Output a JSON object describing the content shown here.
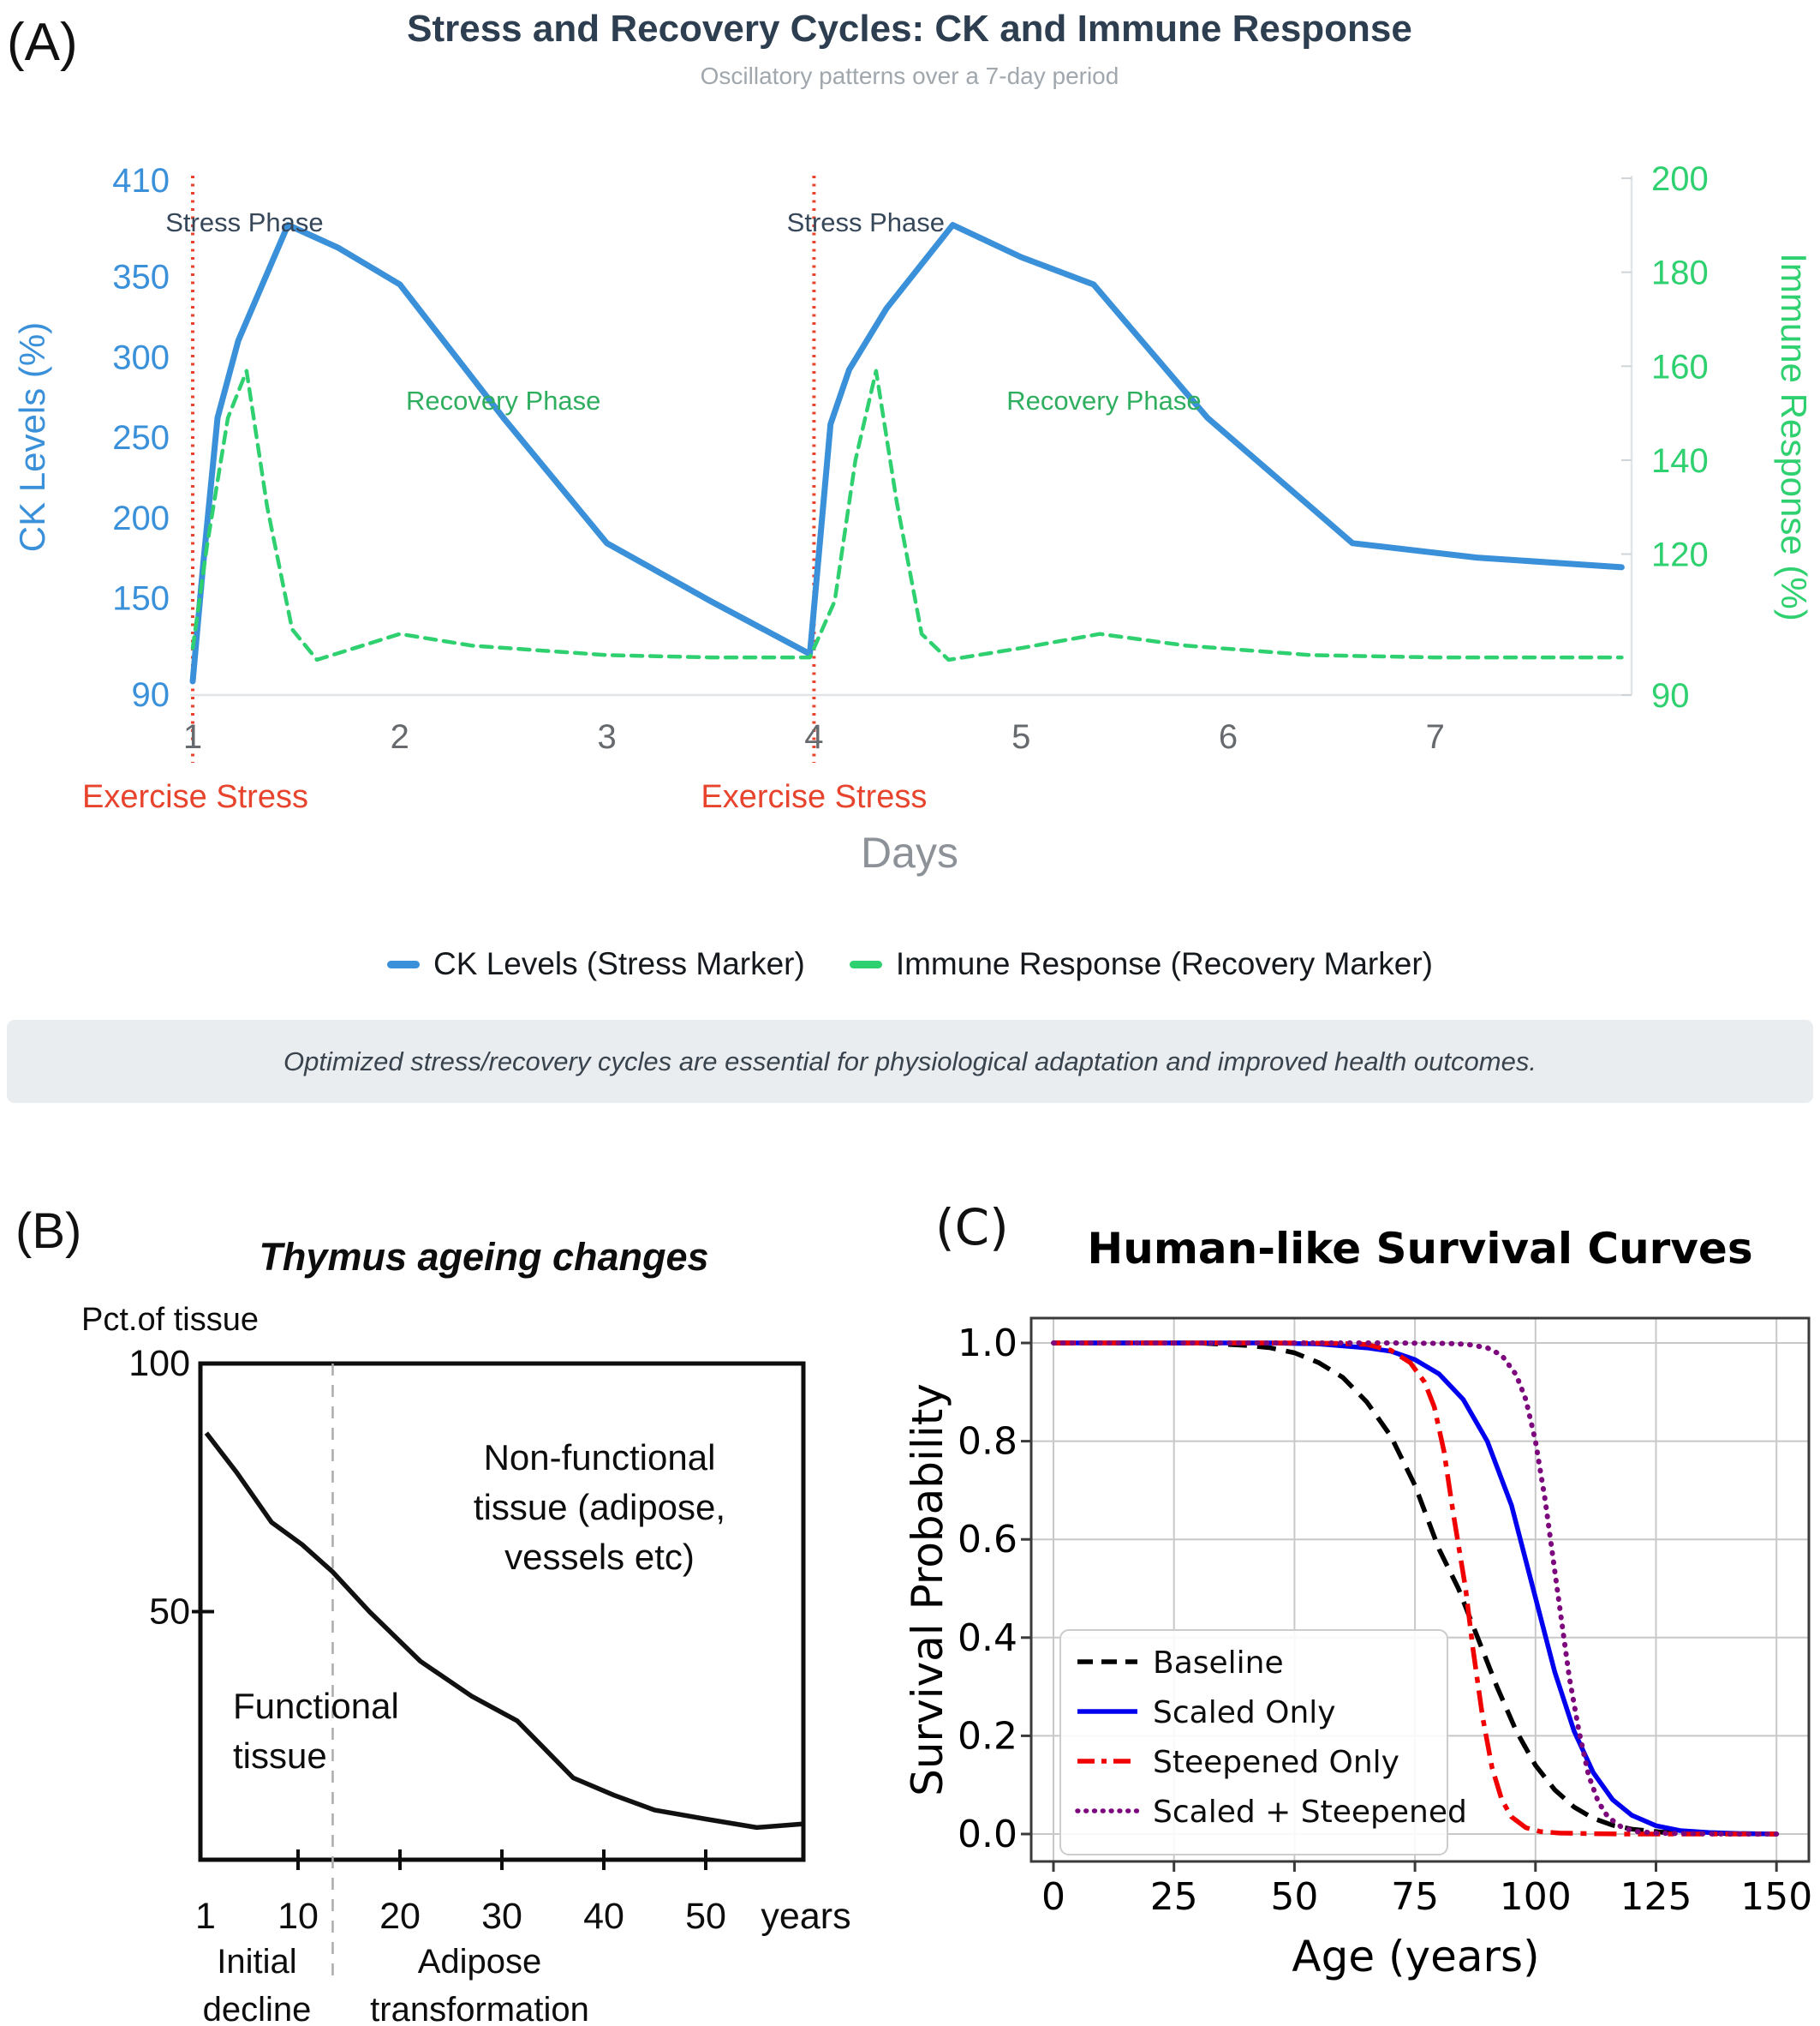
{
  "figure": {
    "panel_a": {
      "label": "(A)",
      "caption": "Optimized stress/recovery cycles are essential for physiological adaptation and improved health outcomes."
    },
    "panel_b": {
      "label": "(B)"
    },
    "panel_c": {
      "label": "(C)"
    }
  },
  "chart_data": [
    {
      "type": "line",
      "title": "Stress and Recovery Cycles: CK and Immune Response",
      "subtitle": "Oscillatory patterns over a 7-day period",
      "xlabel": "Days",
      "x_ticks": [
        1,
        2,
        3,
        4,
        5,
        6,
        7
      ],
      "xlim": [
        1,
        7.9
      ],
      "grid": false,
      "legend_position": "bottom",
      "y_left": {
        "label": "CK Levels (%)",
        "ticks": [
          410,
          350,
          300,
          250,
          200,
          150,
          90
        ],
        "range": [
          90,
          410
        ],
        "color": "#3a90d9"
      },
      "y_right": {
        "label": "Immune Response (%)",
        "ticks": [
          200,
          180,
          160,
          140,
          120,
          90
        ],
        "range": [
          90,
          200
        ],
        "color": "#2fd06f"
      },
      "vlines": [
        {
          "x": 1,
          "label": "Exercise Stress",
          "color": "#e8432d"
        },
        {
          "x": 4,
          "label": "Exercise Stress",
          "color": "#e8432d"
        }
      ],
      "annotations": [
        {
          "text": "Stress Phase",
          "x": 1.25,
          "y": 378,
          "color": "#37475a"
        },
        {
          "text": "Stress Phase",
          "x": 4.25,
          "y": 378,
          "color": "#37475a"
        },
        {
          "text": "Recovery Phase",
          "x": 2.5,
          "y": 267,
          "color": "#2fae5f"
        },
        {
          "text": "Recovery Phase",
          "x": 5.4,
          "y": 267,
          "color": "#2fae5f"
        }
      ],
      "series": [
        {
          "name": "CK Levels (Stress Marker)",
          "axis": "left",
          "color": "#3a90d9",
          "style": "solid",
          "points": [
            [
              1,
              98
            ],
            [
              1.05,
              170
            ],
            [
              1.12,
              262
            ],
            [
              1.22,
              310
            ],
            [
              1.46,
              382
            ],
            [
              1.7,
              368
            ],
            [
              2,
              345
            ],
            [
              2.5,
              262
            ],
            [
              3,
              184
            ],
            [
              3.5,
              148
            ],
            [
              3.98,
              115
            ],
            [
              4.08,
              258
            ],
            [
              4.17,
              292
            ],
            [
              4.35,
              330
            ],
            [
              4.67,
              382
            ],
            [
              5,
              362
            ],
            [
              5.35,
              345
            ],
            [
              5.9,
              262
            ],
            [
              6.6,
              184
            ],
            [
              7.2,
              175
            ],
            [
              7.9,
              169
            ]
          ]
        },
        {
          "name": "Immune Response (Recovery Marker)",
          "axis": "right",
          "color": "#2fd06f",
          "style": "dashed",
          "points": [
            [
              1,
              100
            ],
            [
              1.07,
              122
            ],
            [
              1.17,
              149
            ],
            [
              1.26,
              159
            ],
            [
              1.36,
              130
            ],
            [
              1.48,
              104
            ],
            [
              1.6,
              97.5
            ],
            [
              2,
              103
            ],
            [
              2.35,
              100.5
            ],
            [
              3,
              98.5
            ],
            [
              3.5,
              98
            ],
            [
              3.98,
              98
            ],
            [
              4.1,
              110
            ],
            [
              4.2,
              140
            ],
            [
              4.3,
              159
            ],
            [
              4.4,
              131
            ],
            [
              4.52,
              103
            ],
            [
              4.65,
              97.5
            ],
            [
              5,
              100
            ],
            [
              5.38,
              103
            ],
            [
              5.8,
              100.5
            ],
            [
              6.4,
              98.5
            ],
            [
              7,
              98
            ],
            [
              7.9,
              98
            ]
          ]
        }
      ]
    },
    {
      "type": "line",
      "title": "Thymus ageing changes",
      "ylabel": "Pct.of tissue",
      "y_ticks": [
        100,
        50
      ],
      "x_ticks": [
        10,
        20,
        30,
        40,
        50
      ],
      "x_first_label": "1",
      "x_unit": "years",
      "dashed_vline_x": 13.4,
      "series": [
        {
          "name": "Functional tissue fraction",
          "color": "#111111",
          "points": [
            [
              1,
              86
            ],
            [
              4,
              78
            ],
            [
              7.4,
              68
            ],
            [
              10.4,
              63.5
            ],
            [
              13.4,
              58
            ],
            [
              17,
              50
            ],
            [
              22,
              40
            ],
            [
              27,
              33
            ],
            [
              31.5,
              28
            ],
            [
              37,
              16.5
            ],
            [
              41,
              13
            ],
            [
              45,
              10
            ],
            [
              50,
              8.2
            ],
            [
              55,
              6.5
            ],
            [
              59.5,
              7.2
            ]
          ]
        }
      ],
      "annotations": {
        "non_functional": [
          "Non-functional",
          "tissue (adipose,",
          "vessels etc)"
        ],
        "functional": [
          "Functional",
          "tissue"
        ],
        "initial_decline": [
          "Initial",
          "decline"
        ],
        "adipose_transformation": [
          "Adipose",
          "transformation"
        ]
      }
    },
    {
      "type": "line",
      "title": "Human-like Survival Curves",
      "xlabel": "Age (years)",
      "ylabel": "Survival Probability",
      "xlim": [
        0,
        150
      ],
      "ylim": [
        0.0,
        1.0
      ],
      "x_ticks": [
        0,
        25,
        50,
        75,
        100,
        125,
        150
      ],
      "y_ticks": [
        "0.0",
        "0.2",
        "0.4",
        "0.6",
        "0.8",
        "1.0"
      ],
      "grid": true,
      "legend_position": "lower left",
      "series": [
        {
          "name": "Baseline",
          "color": "#000000",
          "style": "dashed",
          "points": [
            [
              0,
              1
            ],
            [
              30,
              1
            ],
            [
              40,
              0.995
            ],
            [
              45,
              0.99
            ],
            [
              50,
              0.98
            ],
            [
              55,
              0.96
            ],
            [
              60,
              0.93
            ],
            [
              65,
              0.88
            ],
            [
              70,
              0.81
            ],
            [
              75,
              0.71
            ],
            [
              80,
              0.58
            ],
            [
              84,
              0.5
            ],
            [
              88,
              0.4
            ],
            [
              92,
              0.3
            ],
            [
              96,
              0.21
            ],
            [
              100,
              0.14
            ],
            [
              104,
              0.09
            ],
            [
              108,
              0.055
            ],
            [
              112,
              0.032
            ],
            [
              116,
              0.018
            ],
            [
              120,
              0.01
            ],
            [
              126,
              0.004
            ],
            [
              132,
              0.002
            ],
            [
              140,
              0.001
            ],
            [
              150,
              0
            ]
          ]
        },
        {
          "name": "Scaled Only",
          "color": "#0000ee",
          "style": "solid",
          "points": [
            [
              0,
              1
            ],
            [
              45,
              1
            ],
            [
              55,
              0.998
            ],
            [
              65,
              0.99
            ],
            [
              70,
              0.983
            ],
            [
              75,
              0.966
            ],
            [
              80,
              0.937
            ],
            [
              85,
              0.885
            ],
            [
              90,
              0.8
            ],
            [
              95,
              0.67
            ],
            [
              99.5,
              0.5
            ],
            [
              104,
              0.33
            ],
            [
              108,
              0.21
            ],
            [
              112,
              0.125
            ],
            [
              116,
              0.07
            ],
            [
              120,
              0.038
            ],
            [
              125,
              0.017
            ],
            [
              130,
              0.007
            ],
            [
              136,
              0.003
            ],
            [
              142,
              0.001
            ],
            [
              150,
              0
            ]
          ]
        },
        {
          "name": "Steepened Only",
          "color": "#f00000",
          "style": "dashdot",
          "points": [
            [
              0,
              1
            ],
            [
              50,
              1
            ],
            [
              60,
              0.999
            ],
            [
              65,
              0.997
            ],
            [
              70,
              0.985
            ],
            [
              74,
              0.96
            ],
            [
              77,
              0.92
            ],
            [
              79,
              0.87
            ],
            [
              81,
              0.78
            ],
            [
              83,
              0.65
            ],
            [
              85.5,
              0.5
            ],
            [
              87,
              0.38
            ],
            [
              89,
              0.24
            ],
            [
              91,
              0.135
            ],
            [
              93,
              0.07
            ],
            [
              95,
              0.035
            ],
            [
              98,
              0.013
            ],
            [
              101,
              0.005
            ],
            [
              105,
              0.002
            ],
            [
              110,
              0.001
            ],
            [
              118,
              0
            ],
            [
              150,
              0
            ]
          ]
        },
        {
          "name": "Scaled + Steepened",
          "color": "#7d077d",
          "style": "dotted",
          "points": [
            [
              0,
              1
            ],
            [
              70,
              1
            ],
            [
              82,
              0.999
            ],
            [
              86,
              0.997
            ],
            [
              90,
              0.99
            ],
            [
              93,
              0.975
            ],
            [
              96,
              0.935
            ],
            [
              98,
              0.885
            ],
            [
              100,
              0.8
            ],
            [
              102,
              0.68
            ],
            [
              104.5,
              0.5
            ],
            [
              107,
              0.32
            ],
            [
              109,
              0.21
            ],
            [
              111,
              0.12
            ],
            [
              113,
              0.066
            ],
            [
              115,
              0.035
            ],
            [
              118,
              0.013
            ],
            [
              121,
              0.005
            ],
            [
              125,
              0.002
            ],
            [
              130,
              0.001
            ],
            [
              140,
              0
            ],
            [
              150,
              0
            ]
          ]
        }
      ]
    }
  ]
}
